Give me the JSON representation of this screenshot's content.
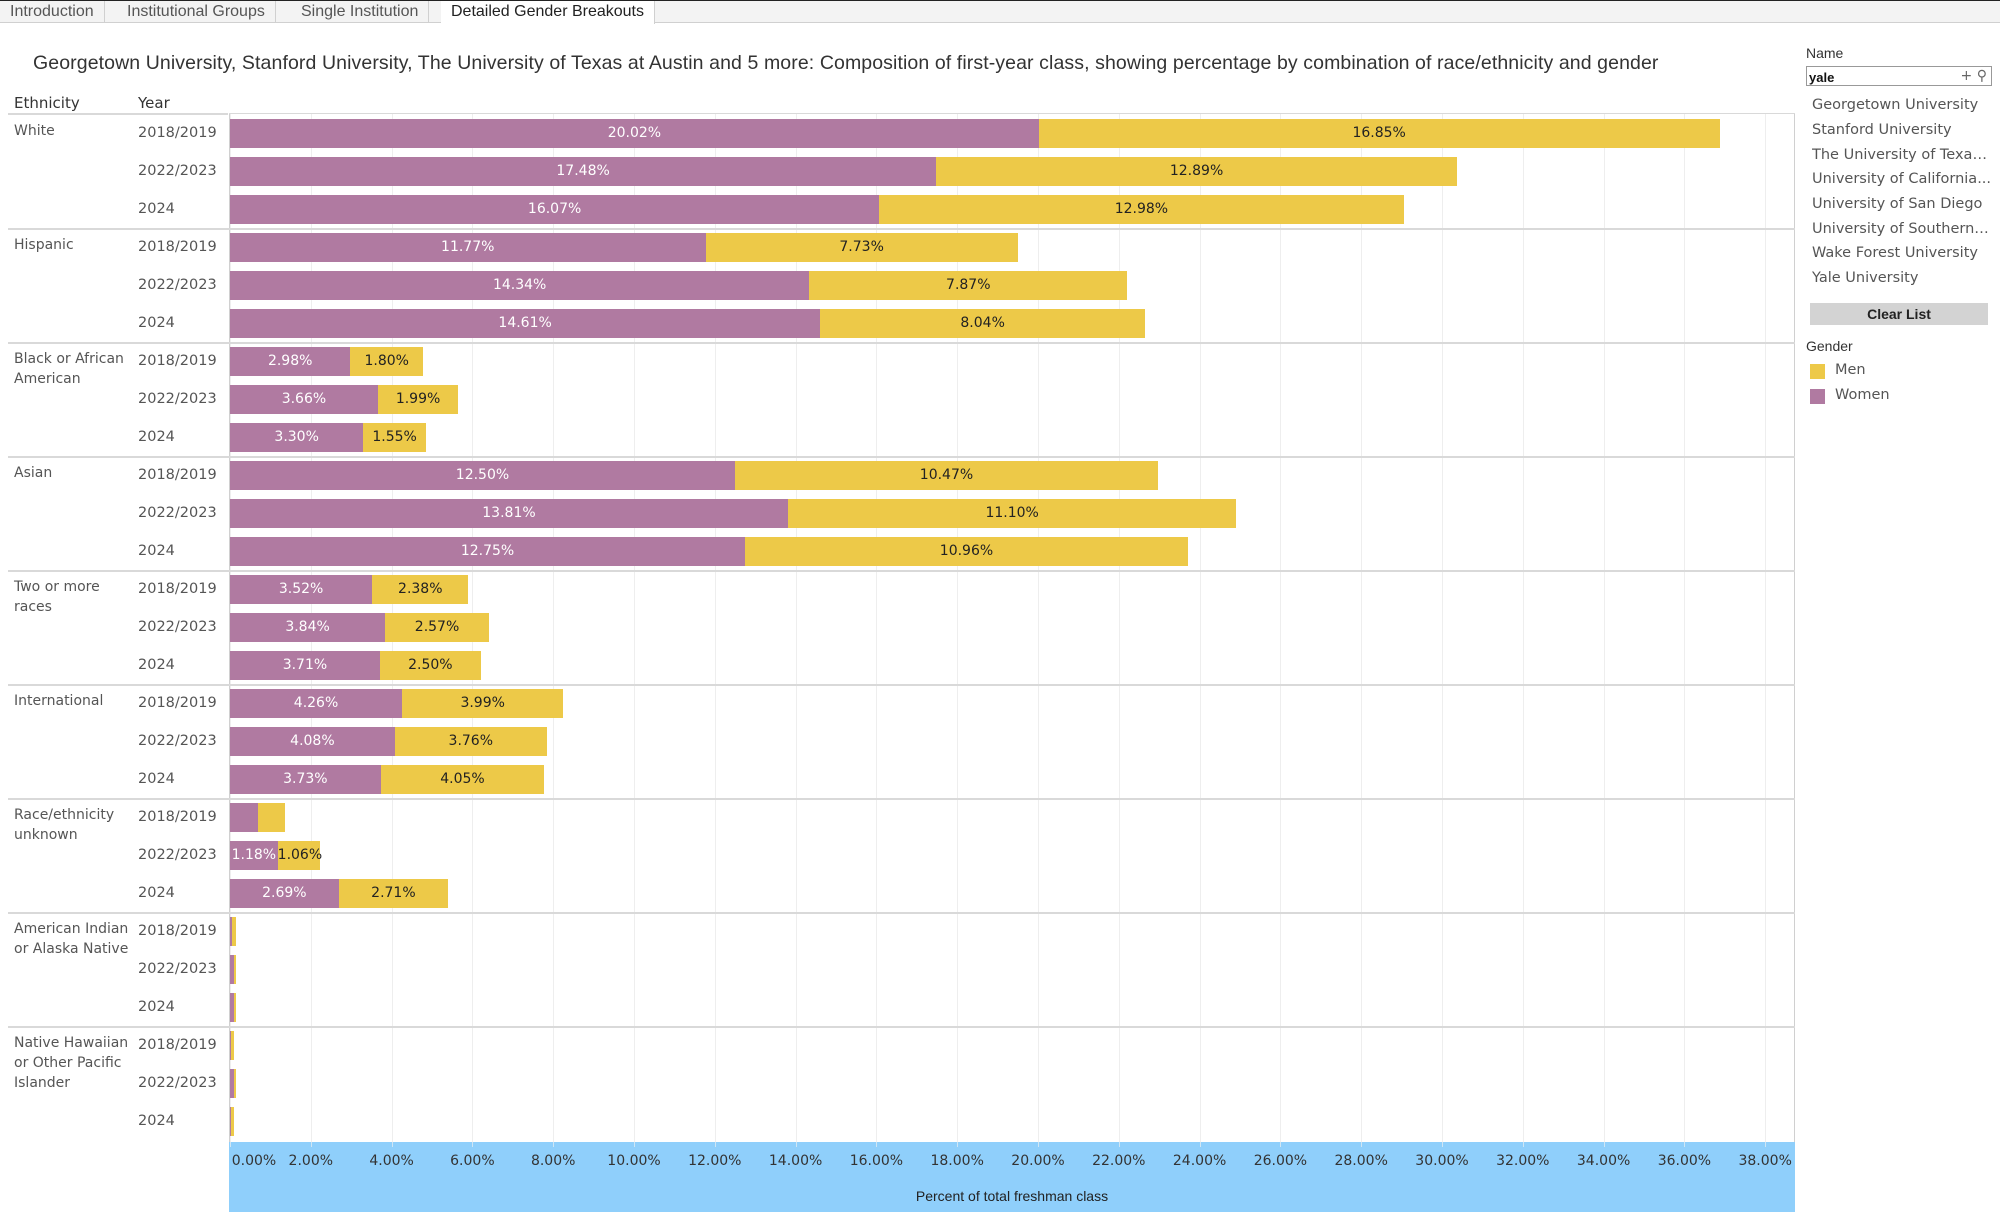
{
  "tabs": [
    {
      "label": "Introduction",
      "active": false
    },
    {
      "label": "Institutional Groups",
      "active": false
    },
    {
      "label": "Single Institution",
      "active": false
    },
    {
      "label": "Detailed Gender Breakouts",
      "active": true
    }
  ],
  "headers": {
    "ethnicity": "Ethnicity",
    "year": "Year"
  },
  "filter": {
    "title": "Name",
    "search_value": "yale",
    "add_icon": "plus-icon",
    "search_icon": "magnifier-icon",
    "items": [
      "Georgetown University",
      "Stanford University",
      "The University of Texas...",
      "University of California...",
      "University of San Diego",
      "University of Southern ...",
      "Wake Forest University",
      "Yale University"
    ],
    "clear_label": "Clear List"
  },
  "legend": {
    "title": "Gender",
    "items": [
      {
        "label": "Men",
        "color": "#edc948"
      },
      {
        "label": "Women",
        "color": "#b07aa1"
      }
    ]
  },
  "chart_data": {
    "type": "bar",
    "orientation": "horizontal",
    "stacked": true,
    "title": "Georgetown University, Stanford University, The University of Texas at Austin and 5 more: Composition of first-year class, showing percentage by combination of race/ethnicity and gender",
    "xlabel": "Percent of total freshman class",
    "ylabel": "",
    "xlim": [
      0,
      38.5
    ],
    "ticks": [
      "0.00%",
      "2.00%",
      "4.00%",
      "6.00%",
      "8.00%",
      "10.00%",
      "12.00%",
      "14.00%",
      "16.00%",
      "18.00%",
      "20.00%",
      "22.00%",
      "24.00%",
      "26.00%",
      "28.00%",
      "30.00%",
      "32.00%",
      "34.00%",
      "36.00%",
      "38.00%"
    ],
    "tick_values": [
      0,
      2,
      4,
      6,
      8,
      10,
      12,
      14,
      16,
      18,
      20,
      22,
      24,
      26,
      28,
      30,
      32,
      34,
      36,
      38
    ],
    "grid": true,
    "legend_position": "right",
    "series_order": [
      "Women",
      "Men"
    ],
    "series_colors": {
      "Women": "#b07aa1",
      "Men": "#edc948"
    },
    "groups": [
      {
        "ethnicity": "White",
        "rows": [
          {
            "year": "2018/2019",
            "women": 20.02,
            "men": 16.85,
            "women_label": "20.02%",
            "men_label": "16.85%"
          },
          {
            "year": "2022/2023",
            "women": 17.48,
            "men": 12.89,
            "women_label": "17.48%",
            "men_label": "12.89%"
          },
          {
            "year": "2024",
            "women": 16.07,
            "men": 12.98,
            "women_label": "16.07%",
            "men_label": "12.98%"
          }
        ]
      },
      {
        "ethnicity": "Hispanic",
        "rows": [
          {
            "year": "2018/2019",
            "women": 11.77,
            "men": 7.73,
            "women_label": "11.77%",
            "men_label": "7.73%"
          },
          {
            "year": "2022/2023",
            "women": 14.34,
            "men": 7.87,
            "women_label": "14.34%",
            "men_label": "7.87%"
          },
          {
            "year": "2024",
            "women": 14.61,
            "men": 8.04,
            "women_label": "14.61%",
            "men_label": "8.04%"
          }
        ]
      },
      {
        "ethnicity": "Black or African American",
        "rows": [
          {
            "year": "2018/2019",
            "women": 2.98,
            "men": 1.8,
            "women_label": "2.98%",
            "men_label": "1.80%"
          },
          {
            "year": "2022/2023",
            "women": 3.66,
            "men": 1.99,
            "women_label": "3.66%",
            "men_label": "1.99%"
          },
          {
            "year": "2024",
            "women": 3.3,
            "men": 1.55,
            "women_label": "3.30%",
            "men_label": "1.55%"
          }
        ]
      },
      {
        "ethnicity": "Asian",
        "rows": [
          {
            "year": "2018/2019",
            "women": 12.5,
            "men": 10.47,
            "women_label": "12.50%",
            "men_label": "10.47%"
          },
          {
            "year": "2022/2023",
            "women": 13.81,
            "men": 11.1,
            "women_label": "13.81%",
            "men_label": "11.10%"
          },
          {
            "year": "2024",
            "women": 12.75,
            "men": 10.96,
            "women_label": "12.75%",
            "men_label": "10.96%"
          }
        ]
      },
      {
        "ethnicity": "Two or more races",
        "rows": [
          {
            "year": "2018/2019",
            "women": 3.52,
            "men": 2.38,
            "women_label": "3.52%",
            "men_label": "2.38%"
          },
          {
            "year": "2022/2023",
            "women": 3.84,
            "men": 2.57,
            "women_label": "3.84%",
            "men_label": "2.57%"
          },
          {
            "year": "2024",
            "women": 3.71,
            "men": 2.5,
            "women_label": "3.71%",
            "men_label": "2.50%"
          }
        ]
      },
      {
        "ethnicity": "International",
        "rows": [
          {
            "year": "2018/2019",
            "women": 4.26,
            "men": 3.99,
            "women_label": "4.26%",
            "men_label": "3.99%"
          },
          {
            "year": "2022/2023",
            "women": 4.08,
            "men": 3.76,
            "women_label": "4.08%",
            "men_label": "3.76%"
          },
          {
            "year": "2024",
            "women": 3.73,
            "men": 4.05,
            "women_label": "3.73%",
            "men_label": "4.05%"
          }
        ]
      },
      {
        "ethnicity": "Race/ethnicity unknown",
        "rows": [
          {
            "year": "2018/2019",
            "women": 0.7,
            "men": 0.67,
            "women_label": "",
            "men_label": ""
          },
          {
            "year": "2022/2023",
            "women": 1.18,
            "men": 1.06,
            "women_label": "1.18%",
            "men_label": "1.06%"
          },
          {
            "year": "2024",
            "women": 2.69,
            "men": 2.71,
            "women_label": "2.69%",
            "men_label": "2.71%"
          }
        ]
      },
      {
        "ethnicity": "American Indian or Alaska Native",
        "rows": [
          {
            "year": "2018/2019",
            "women": 0.05,
            "men": 0.1,
            "women_label": "",
            "men_label": ""
          },
          {
            "year": "2022/2023",
            "women": 0.1,
            "men": 0.05,
            "women_label": "",
            "men_label": ""
          },
          {
            "year": "2024",
            "women": 0.1,
            "men": 0.06,
            "women_label": "",
            "men_label": ""
          }
        ]
      },
      {
        "ethnicity": "Native Hawaiian or Other Pacific Islander",
        "rows": [
          {
            "year": "2018/2019",
            "women": 0.03,
            "men": 0.06,
            "women_label": "",
            "men_label": ""
          },
          {
            "year": "2022/2023",
            "women": 0.1,
            "men": 0.05,
            "women_label": "",
            "men_label": ""
          },
          {
            "year": "2024",
            "women": 0.03,
            "men": 0.08,
            "women_label": "",
            "men_label": ""
          }
        ]
      }
    ]
  }
}
